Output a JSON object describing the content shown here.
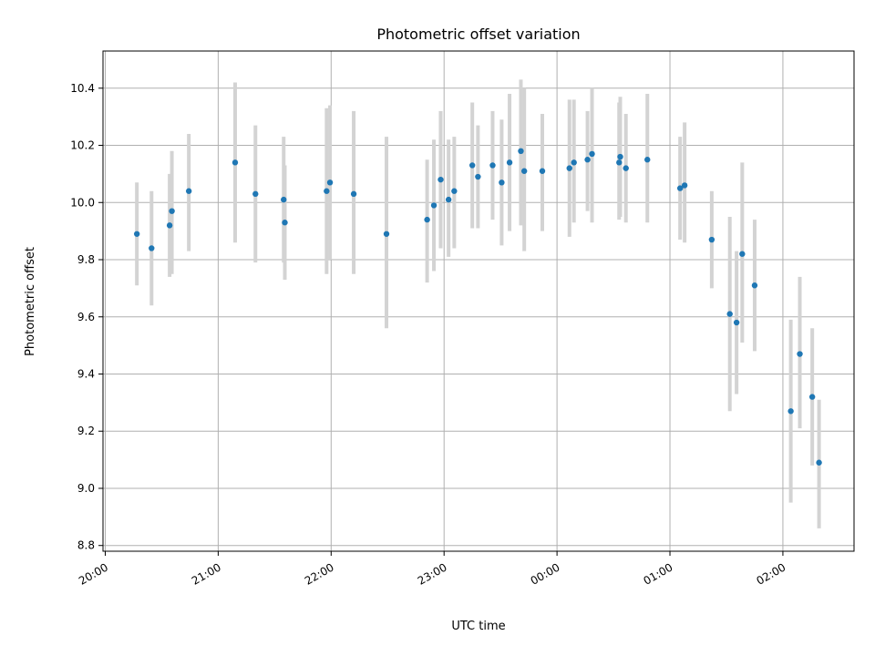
{
  "chart_data": {
    "type": "scatter",
    "title": "Photometric offset variation",
    "xlabel": "UTC time",
    "ylabel": "Photometric offset",
    "x_unit": "hours relative to 00:00 UTC",
    "xlim": [
      -4.02,
      2.63
    ],
    "ylim": [
      8.78,
      10.53
    ],
    "x_ticks": [
      {
        "value": -4,
        "label": "20:00"
      },
      {
        "value": -3,
        "label": "21:00"
      },
      {
        "value": -2,
        "label": "22:00"
      },
      {
        "value": -1,
        "label": "23:00"
      },
      {
        "value": 0,
        "label": "00:00"
      },
      {
        "value": 1,
        "label": "01:00"
      },
      {
        "value": 2,
        "label": "02:00"
      }
    ],
    "y_ticks": [
      {
        "value": 8.8,
        "label": "8.8"
      },
      {
        "value": 9.0,
        "label": "9.0"
      },
      {
        "value": 9.2,
        "label": "9.2"
      },
      {
        "value": 9.4,
        "label": "9.4"
      },
      {
        "value": 9.6,
        "label": "9.6"
      },
      {
        "value": 9.8,
        "label": "9.8"
      },
      {
        "value": 10.0,
        "label": "10.0"
      },
      {
        "value": 10.2,
        "label": "10.2"
      },
      {
        "value": 10.4,
        "label": "10.4"
      }
    ],
    "grid": true,
    "legend": "none",
    "colors": {
      "point": "#1f77b4",
      "errorbar": "#d3d3d3",
      "grid": "#b0b0b0"
    },
    "points": [
      {
        "x": -3.72,
        "y": 9.89,
        "err_low": 9.71,
        "err_high": 10.07
      },
      {
        "x": -3.59,
        "y": 9.84,
        "err_low": 9.64,
        "err_high": 10.04
      },
      {
        "x": -3.43,
        "y": 9.92,
        "err_low": 9.74,
        "err_high": 10.1
      },
      {
        "x": -3.41,
        "y": 9.97,
        "err_low": 9.75,
        "err_high": 10.18
      },
      {
        "x": -3.26,
        "y": 10.04,
        "err_low": 9.83,
        "err_high": 10.24
      },
      {
        "x": -2.85,
        "y": 10.14,
        "err_low": 9.86,
        "err_high": 10.42
      },
      {
        "x": -2.67,
        "y": 10.03,
        "err_low": 9.79,
        "err_high": 10.27
      },
      {
        "x": -2.42,
        "y": 10.01,
        "err_low": 9.79,
        "err_high": 10.23
      },
      {
        "x": -2.41,
        "y": 9.93,
        "err_low": 9.73,
        "err_high": 10.13
      },
      {
        "x": -2.04,
        "y": 10.04,
        "err_low": 9.75,
        "err_high": 10.33
      },
      {
        "x": -2.01,
        "y": 10.07,
        "err_low": 9.8,
        "err_high": 10.34
      },
      {
        "x": -1.8,
        "y": 10.03,
        "err_low": 9.75,
        "err_high": 10.32
      },
      {
        "x": -1.51,
        "y": 9.89,
        "err_low": 9.56,
        "err_high": 10.23
      },
      {
        "x": -1.15,
        "y": 9.94,
        "err_low": 9.72,
        "err_high": 10.15
      },
      {
        "x": -1.09,
        "y": 9.99,
        "err_low": 9.76,
        "err_high": 10.22
      },
      {
        "x": -1.03,
        "y": 10.08,
        "err_low": 9.84,
        "err_high": 10.32
      },
      {
        "x": -0.96,
        "y": 10.01,
        "err_low": 9.81,
        "err_high": 10.22
      },
      {
        "x": -0.91,
        "y": 10.04,
        "err_low": 9.84,
        "err_high": 10.23
      },
      {
        "x": -0.75,
        "y": 10.13,
        "err_low": 9.91,
        "err_high": 10.35
      },
      {
        "x": -0.7,
        "y": 10.09,
        "err_low": 9.91,
        "err_high": 10.27
      },
      {
        "x": -0.57,
        "y": 10.13,
        "err_low": 9.94,
        "err_high": 10.32
      },
      {
        "x": -0.49,
        "y": 10.07,
        "err_low": 9.85,
        "err_high": 10.29
      },
      {
        "x": -0.42,
        "y": 10.14,
        "err_low": 9.9,
        "err_high": 10.38
      },
      {
        "x": -0.32,
        "y": 10.18,
        "err_low": 9.92,
        "err_high": 10.43
      },
      {
        "x": -0.29,
        "y": 10.11,
        "err_low": 9.83,
        "err_high": 10.4
      },
      {
        "x": -0.13,
        "y": 10.11,
        "err_low": 9.9,
        "err_high": 10.31
      },
      {
        "x": 0.11,
        "y": 10.12,
        "err_low": 9.88,
        "err_high": 10.36
      },
      {
        "x": 0.15,
        "y": 10.14,
        "err_low": 9.93,
        "err_high": 10.36
      },
      {
        "x": 0.27,
        "y": 10.15,
        "err_low": 9.97,
        "err_high": 10.32
      },
      {
        "x": 0.31,
        "y": 10.17,
        "err_low": 9.93,
        "err_high": 10.4
      },
      {
        "x": 0.55,
        "y": 10.14,
        "err_low": 9.94,
        "err_high": 10.35
      },
      {
        "x": 0.56,
        "y": 10.16,
        "err_low": 9.95,
        "err_high": 10.37
      },
      {
        "x": 0.61,
        "y": 10.12,
        "err_low": 9.93,
        "err_high": 10.31
      },
      {
        "x": 0.8,
        "y": 10.15,
        "err_low": 9.93,
        "err_high": 10.38
      },
      {
        "x": 1.09,
        "y": 10.05,
        "err_low": 9.87,
        "err_high": 10.23
      },
      {
        "x": 1.13,
        "y": 10.06,
        "err_low": 9.86,
        "err_high": 10.28
      },
      {
        "x": 1.37,
        "y": 9.87,
        "err_low": 9.7,
        "err_high": 10.04
      },
      {
        "x": 1.53,
        "y": 9.61,
        "err_low": 9.27,
        "err_high": 9.95
      },
      {
        "x": 1.59,
        "y": 9.58,
        "err_low": 9.33,
        "err_high": 9.83
      },
      {
        "x": 1.64,
        "y": 9.82,
        "err_low": 9.51,
        "err_high": 10.14
      },
      {
        "x": 1.75,
        "y": 9.71,
        "err_low": 9.48,
        "err_high": 9.94
      },
      {
        "x": 2.07,
        "y": 9.27,
        "err_low": 8.95,
        "err_high": 9.59
      },
      {
        "x": 2.15,
        "y": 9.47,
        "err_low": 9.21,
        "err_high": 9.74
      },
      {
        "x": 2.26,
        "y": 9.32,
        "err_low": 9.08,
        "err_high": 9.56
      },
      {
        "x": 2.32,
        "y": 9.09,
        "err_low": 8.86,
        "err_high": 9.31
      }
    ]
  }
}
